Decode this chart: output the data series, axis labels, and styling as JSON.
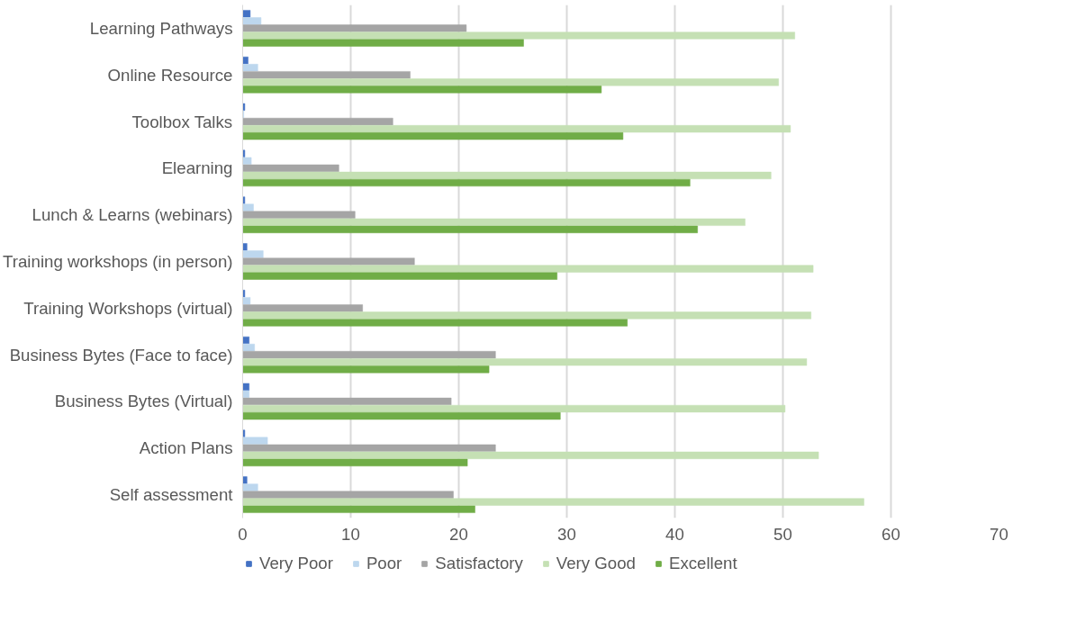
{
  "chart_data": {
    "type": "bar",
    "orientation": "horizontal",
    "categories": [
      "Learning Pathways",
      "Online Resource",
      "Toolbox Talks",
      "Elearning",
      "Lunch & Learns (webinars)",
      "Training workshops (in person)",
      "Training Workshops (virtual)",
      "Business Bytes (Face to face)",
      "Business Bytes (Virtual)",
      "Action Plans",
      "Self assessment"
    ],
    "series": [
      {
        "name": "Very Poor",
        "color": "#4472c4",
        "values": [
          0.7,
          0.5,
          0.2,
          0.2,
          0.2,
          0.4,
          0.2,
          0.6,
          0.6,
          0.2,
          0.4
        ]
      },
      {
        "name": "Poor",
        "color": "#bdd7ee",
        "values": [
          1.7,
          1.4,
          0.1,
          0.8,
          1.0,
          1.9,
          0.7,
          1.1,
          0.6,
          2.3,
          1.4
        ]
      },
      {
        "name": "Satisfactory",
        "color": "#a5a5a5",
        "values": [
          20.7,
          15.5,
          13.9,
          8.9,
          10.4,
          15.9,
          11.1,
          23.4,
          19.3,
          23.4,
          19.5
        ]
      },
      {
        "name": "Very Good",
        "color": "#c5e0b4",
        "values": [
          51.1,
          49.6,
          50.7,
          48.9,
          46.5,
          52.8,
          52.6,
          52.2,
          50.2,
          53.3,
          57.5
        ]
      },
      {
        "name": "Excellent",
        "color": "#70ad47",
        "values": [
          26.0,
          33.2,
          35.2,
          41.4,
          42.1,
          29.1,
          35.6,
          22.8,
          29.4,
          20.8,
          21.5
        ]
      }
    ],
    "xlim": [
      0,
      70
    ],
    "xticks": [
      0,
      10,
      20,
      30,
      40,
      50,
      60,
      70
    ],
    "grid": "x",
    "legend": "bottom"
  }
}
